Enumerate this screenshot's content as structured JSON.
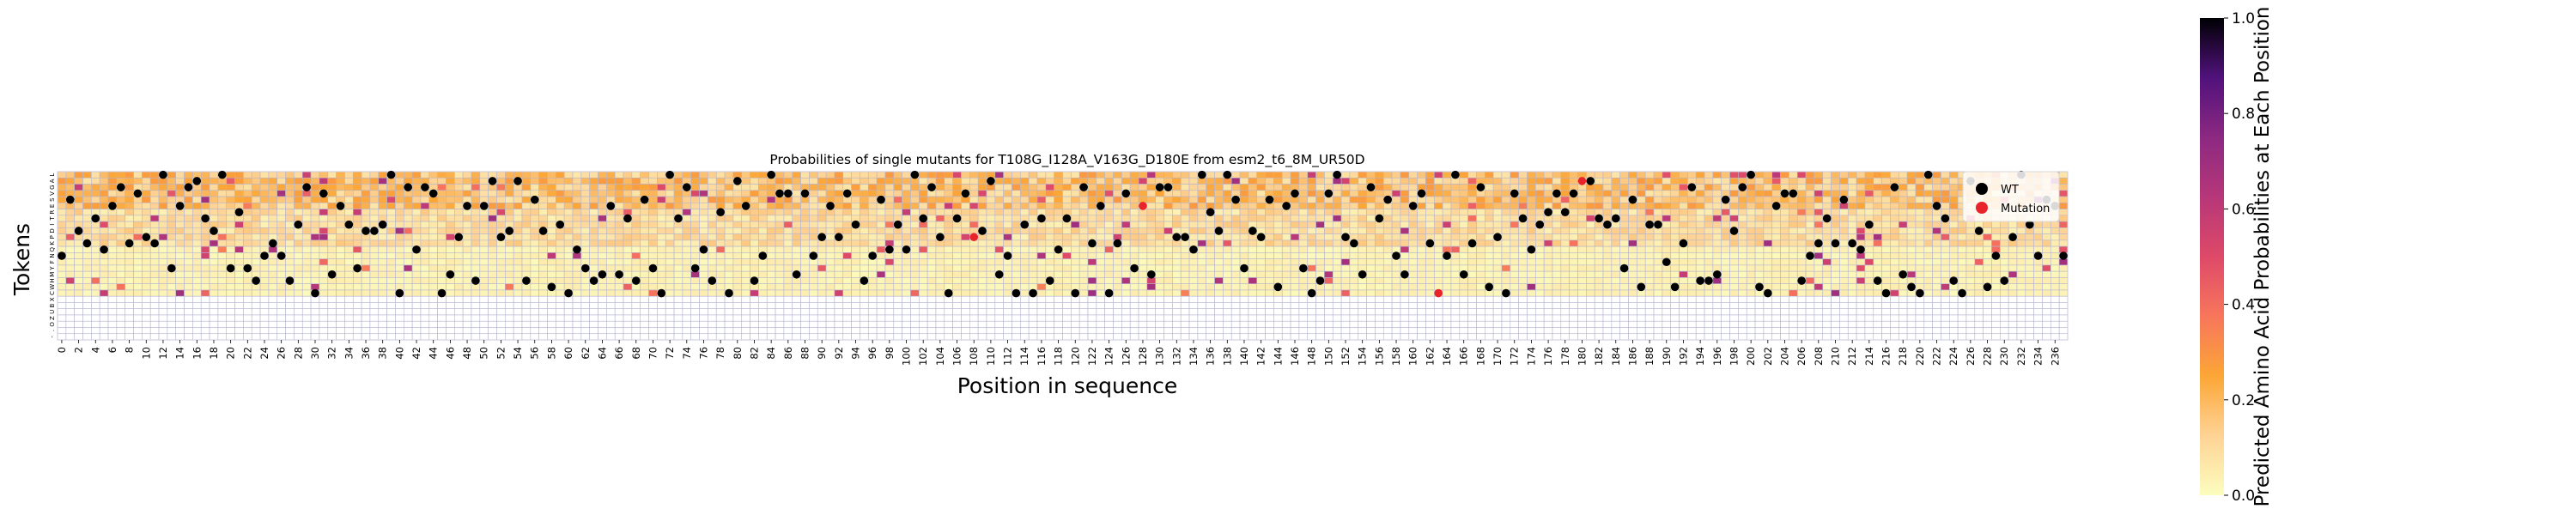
{
  "chart_data": {
    "type": "heatmap",
    "title": "Probabilities of single mutants for T108G_I128A_V163G_D180E from esm2_t6_8M_UR50D",
    "xlabel": "Position in sequence",
    "ylabel": "Tokens",
    "x_range": [
      0,
      237
    ],
    "x_tick_step": 2,
    "y_tokens": [
      "L",
      "A",
      "G",
      "V",
      "S",
      "E",
      "R",
      "T",
      "I",
      "D",
      "P",
      "K",
      "Q",
      "N",
      "F",
      "Y",
      "M",
      "H",
      "W",
      "C",
      "X",
      "B",
      "U",
      "Z",
      "O",
      ".",
      "-"
    ],
    "mutation_positions": [
      108,
      128,
      163,
      180
    ],
    "colorbar": {
      "label": "Predicted Amino Acid Probabilities at Each Position",
      "colormap": "magma_r",
      "range": [
        0,
        1
      ],
      "ticks": [
        "0.0",
        "0.2",
        "0.4",
        "0.6",
        "0.8",
        "1.0"
      ]
    },
    "legend": {
      "placement": "top-right",
      "entries": [
        {
          "label": "WT",
          "marker": "black-dot",
          "color": "#000000"
        },
        {
          "label": "Mutation",
          "marker": "red-dot",
          "color": "#e8242a"
        }
      ]
    },
    "grid": true
  }
}
